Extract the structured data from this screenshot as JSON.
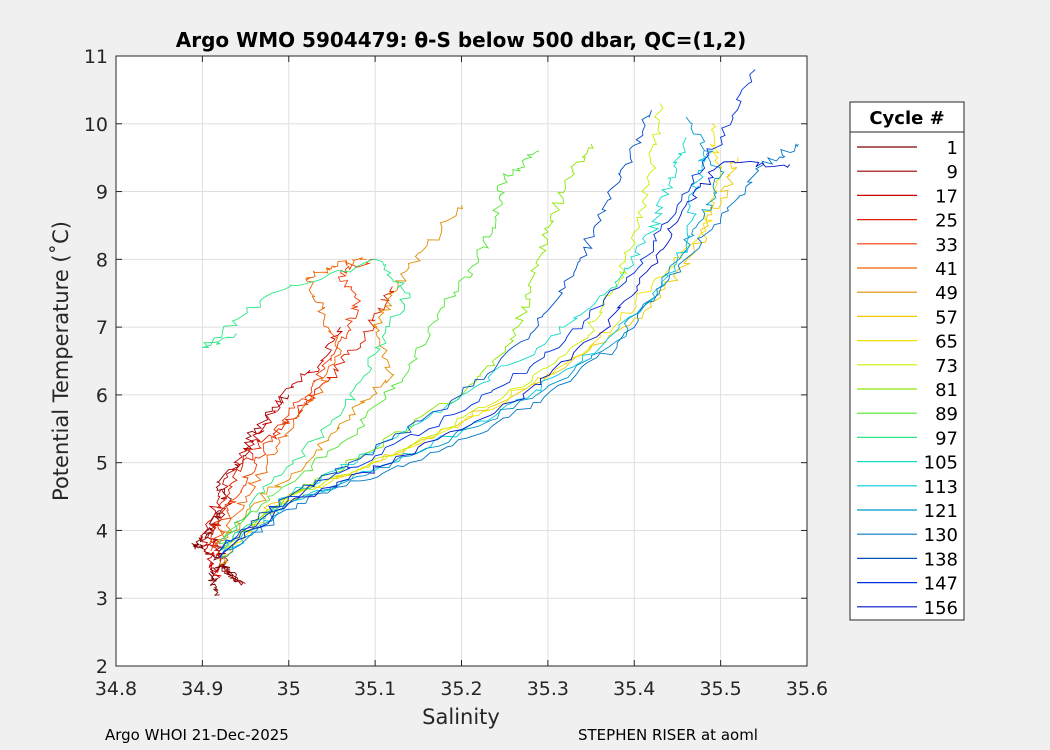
{
  "chart_data": {
    "type": "line",
    "title": "Argo WMO 5904479: θ-S below 500 dbar,  QC=(1,2)",
    "xlabel": "Salinity",
    "ylabel": "Potential Temperature (˚C)",
    "xlim": [
      34.8,
      35.6
    ],
    "ylim": [
      2,
      11
    ],
    "xticks": [
      "34.8",
      "34.9",
      "35",
      "35.1",
      "35.2",
      "35.3",
      "35.4",
      "35.5",
      "35.6"
    ],
    "yticks": [
      "2",
      "3",
      "4",
      "5",
      "6",
      "7",
      "8",
      "9",
      "10",
      "11"
    ],
    "xtick_values": [
      34.8,
      34.9,
      35.0,
      35.1,
      35.2,
      35.3,
      35.4,
      35.5,
      35.6
    ],
    "ytick_values": [
      2,
      3,
      4,
      5,
      6,
      7,
      8,
      9,
      10,
      11
    ],
    "grid": true,
    "legend": {
      "title": "Cycle #",
      "placement": "outside-right",
      "entries": [
        {
          "name": "1",
          "color": "#7f0000"
        },
        {
          "name": "9",
          "color": "#9a0000"
        },
        {
          "name": "17",
          "color": "#c80000"
        },
        {
          "name": "25",
          "color": "#e01e00"
        },
        {
          "name": "33",
          "color": "#f03c00"
        },
        {
          "name": "41",
          "color": "#f06400"
        },
        {
          "name": "49",
          "color": "#e08c00"
        },
        {
          "name": "57",
          "color": "#f0c800"
        },
        {
          "name": "65",
          "color": "#f0e000"
        },
        {
          "name": "73",
          "color": "#c8f000"
        },
        {
          "name": "81",
          "color": "#8ce600"
        },
        {
          "name": "89",
          "color": "#50e632"
        },
        {
          "name": "97",
          "color": "#28e682"
        },
        {
          "name": "105",
          "color": "#14dcc8"
        },
        {
          "name": "113",
          "color": "#00c8dc"
        },
        {
          "name": "121",
          "color": "#0096c8"
        },
        {
          "name": "130",
          "color": "#0078c8"
        },
        {
          "name": "138",
          "color": "#0050c8"
        },
        {
          "name": "147",
          "color": "#0032dc"
        },
        {
          "name": "156",
          "color": "#0014c8"
        }
      ]
    },
    "series": [
      {
        "name": "1",
        "color": "#7f0000",
        "points": [
          [
            34.92,
            3.05
          ],
          [
            34.91,
            3.3
          ],
          [
            34.92,
            3.5
          ],
          [
            34.94,
            3.25
          ],
          [
            34.92,
            3.6
          ],
          [
            34.9,
            3.75
          ],
          [
            34.89,
            3.78
          ],
          [
            34.91,
            4.0
          ],
          [
            34.92,
            4.3
          ]
        ]
      },
      {
        "name": "9",
        "color": "#9a0000",
        "points": [
          [
            34.95,
            3.22
          ],
          [
            34.93,
            3.35
          ],
          [
            34.92,
            3.7
          ],
          [
            34.91,
            3.95
          ],
          [
            34.93,
            4.4
          ],
          [
            34.92,
            4.7
          ],
          [
            34.95,
            5.1
          ],
          [
            34.96,
            5.5
          ],
          [
            35.0,
            6.0
          ]
        ]
      },
      {
        "name": "17",
        "color": "#c80000",
        "points": [
          [
            34.92,
            3.3
          ],
          [
            34.91,
            3.6
          ],
          [
            34.9,
            3.9
          ],
          [
            34.92,
            4.5
          ],
          [
            34.94,
            5.0
          ],
          [
            34.97,
            5.5
          ],
          [
            35.0,
            6.1
          ],
          [
            35.04,
            6.5
          ],
          [
            35.06,
            7.0
          ]
        ]
      },
      {
        "name": "25",
        "color": "#e01e00",
        "points": [
          [
            34.92,
            3.5
          ],
          [
            34.91,
            3.9
          ],
          [
            34.93,
            4.6
          ],
          [
            34.96,
            5.2
          ],
          [
            35.0,
            5.6
          ],
          [
            35.03,
            6.0
          ],
          [
            35.07,
            6.6
          ],
          [
            35.1,
            7.1
          ],
          [
            35.12,
            7.6
          ]
        ]
      },
      {
        "name": "33",
        "color": "#f03c00",
        "points": [
          [
            34.91,
            3.7
          ],
          [
            34.93,
            4.3
          ],
          [
            34.96,
            5.0
          ],
          [
            35.0,
            5.7
          ],
          [
            35.03,
            6.2
          ],
          [
            35.06,
            6.8
          ],
          [
            35.08,
            7.3
          ],
          [
            35.06,
            7.8
          ],
          [
            35.1,
            8.0
          ]
        ]
      },
      {
        "name": "41",
        "color": "#f06400",
        "points": [
          [
            34.92,
            3.8
          ],
          [
            34.95,
            4.5
          ],
          [
            34.99,
            5.3
          ],
          [
            35.03,
            6.0
          ],
          [
            35.06,
            6.6
          ],
          [
            35.04,
            7.2
          ],
          [
            35.02,
            7.7
          ],
          [
            35.05,
            7.9
          ],
          [
            35.09,
            8.0
          ]
        ]
      },
      {
        "name": "49",
        "color": "#e08c00",
        "points": [
          [
            34.92,
            3.8
          ],
          [
            34.96,
            4.4
          ],
          [
            35.02,
            5.0
          ],
          [
            35.07,
            5.7
          ],
          [
            35.12,
            6.3
          ],
          [
            35.1,
            7.0
          ],
          [
            35.12,
            7.5
          ],
          [
            35.16,
            8.2
          ],
          [
            35.2,
            8.8
          ]
        ]
      },
      {
        "name": "57",
        "color": "#f0c800",
        "points": [
          [
            34.92,
            3.5
          ],
          [
            34.98,
            4.4
          ],
          [
            35.08,
            4.9
          ],
          [
            35.2,
            5.6
          ],
          [
            35.32,
            6.4
          ],
          [
            35.42,
            7.3
          ],
          [
            35.47,
            8.1
          ],
          [
            35.5,
            8.9
          ],
          [
            35.52,
            9.5
          ]
        ]
      },
      {
        "name": "65",
        "color": "#f0e000",
        "points": [
          [
            34.92,
            3.6
          ],
          [
            34.99,
            4.4
          ],
          [
            35.1,
            5.0
          ],
          [
            35.22,
            5.7
          ],
          [
            35.34,
            6.6
          ],
          [
            35.42,
            7.6
          ],
          [
            35.48,
            8.4
          ],
          [
            35.5,
            9.2
          ],
          [
            35.49,
            10.0
          ]
        ]
      },
      {
        "name": "73",
        "color": "#c8f000",
        "points": [
          [
            34.92,
            3.7
          ],
          [
            35.0,
            4.5
          ],
          [
            35.12,
            5.1
          ],
          [
            35.24,
            5.9
          ],
          [
            35.34,
            6.8
          ],
          [
            35.38,
            7.6
          ],
          [
            35.4,
            8.4
          ],
          [
            35.42,
            9.3
          ],
          [
            35.43,
            10.3
          ]
        ]
      },
      {
        "name": "81",
        "color": "#8ce600",
        "points": [
          [
            34.92,
            3.7
          ],
          [
            35.0,
            4.5
          ],
          [
            35.1,
            5.2
          ],
          [
            35.2,
            6.0
          ],
          [
            35.26,
            6.8
          ],
          [
            35.28,
            7.6
          ],
          [
            35.3,
            8.4
          ],
          [
            35.32,
            9.1
          ],
          [
            35.35,
            9.7
          ]
        ]
      },
      {
        "name": "89",
        "color": "#50e632",
        "points": [
          [
            34.92,
            3.8
          ],
          [
            34.99,
            4.6
          ],
          [
            35.08,
            5.5
          ],
          [
            35.14,
            6.4
          ],
          [
            35.18,
            7.3
          ],
          [
            35.22,
            8.0
          ],
          [
            35.24,
            8.7
          ],
          [
            35.25,
            9.2
          ],
          [
            35.29,
            9.6
          ]
        ]
      },
      {
        "name": "97",
        "color": "#28e682",
        "points": [
          [
            34.92,
            3.8
          ],
          [
            34.98,
            4.7
          ],
          [
            35.06,
            5.7
          ],
          [
            35.1,
            6.6
          ],
          [
            35.14,
            7.5
          ],
          [
            35.1,
            8.0
          ],
          [
            34.98,
            7.5
          ],
          [
            34.9,
            6.7
          ],
          [
            34.94,
            6.9
          ]
        ]
      },
      {
        "name": "105",
        "color": "#14dcc8",
        "points": [
          [
            34.92,
            3.7
          ],
          [
            35.0,
            4.5
          ],
          [
            35.1,
            5.2
          ],
          [
            35.2,
            6.0
          ],
          [
            35.3,
            6.8
          ],
          [
            35.38,
            7.6
          ],
          [
            35.42,
            8.4
          ],
          [
            35.44,
            9.1
          ],
          [
            35.46,
            9.8
          ]
        ]
      },
      {
        "name": "113",
        "color": "#00c8dc",
        "points": [
          [
            34.92,
            3.6
          ],
          [
            35.0,
            4.4
          ],
          [
            35.12,
            5.0
          ],
          [
            35.24,
            5.7
          ],
          [
            35.34,
            6.5
          ],
          [
            35.42,
            7.4
          ],
          [
            35.46,
            8.2
          ],
          [
            35.47,
            9.0
          ],
          [
            35.48,
            9.6
          ]
        ]
      },
      {
        "name": "121",
        "color": "#0096c8",
        "points": [
          [
            34.92,
            3.6
          ],
          [
            35.0,
            4.4
          ],
          [
            35.12,
            5.0
          ],
          [
            35.26,
            5.8
          ],
          [
            35.38,
            6.8
          ],
          [
            35.44,
            7.8
          ],
          [
            35.48,
            8.6
          ],
          [
            35.5,
            9.3
          ],
          [
            35.46,
            10.1
          ]
        ]
      },
      {
        "name": "130",
        "color": "#0078c8",
        "points": [
          [
            34.92,
            3.6
          ],
          [
            35.01,
            4.4
          ],
          [
            35.14,
            5.0
          ],
          [
            35.28,
            5.8
          ],
          [
            35.38,
            6.7
          ],
          [
            35.44,
            7.7
          ],
          [
            35.5,
            8.6
          ],
          [
            35.55,
            9.4
          ],
          [
            35.59,
            9.7
          ]
        ]
      },
      {
        "name": "138",
        "color": "#0050c8",
        "points": [
          [
            34.92,
            3.7
          ],
          [
            35.0,
            4.5
          ],
          [
            35.1,
            5.2
          ],
          [
            35.2,
            6.0
          ],
          [
            35.28,
            6.9
          ],
          [
            35.33,
            7.8
          ],
          [
            35.36,
            8.6
          ],
          [
            35.39,
            9.4
          ],
          [
            35.42,
            10.2
          ]
        ]
      },
      {
        "name": "147",
        "color": "#0032dc",
        "points": [
          [
            34.92,
            3.7
          ],
          [
            35.0,
            4.5
          ],
          [
            35.1,
            5.1
          ],
          [
            35.22,
            5.9
          ],
          [
            35.32,
            6.8
          ],
          [
            35.4,
            7.8
          ],
          [
            35.45,
            8.8
          ],
          [
            35.5,
            9.8
          ],
          [
            35.54,
            10.8
          ]
        ]
      },
      {
        "name": "156",
        "color": "#0014c8",
        "points": [
          [
            34.92,
            3.6
          ],
          [
            35.0,
            4.4
          ],
          [
            35.12,
            5.0
          ],
          [
            35.26,
            5.9
          ],
          [
            35.36,
            6.9
          ],
          [
            35.42,
            7.9
          ],
          [
            35.46,
            8.8
          ],
          [
            35.5,
            9.4
          ],
          [
            35.58,
            9.4
          ]
        ]
      }
    ]
  },
  "footer": {
    "left": "Argo WHOI 21-Dec-2025",
    "right": "STEPHEN RISER at aoml"
  }
}
